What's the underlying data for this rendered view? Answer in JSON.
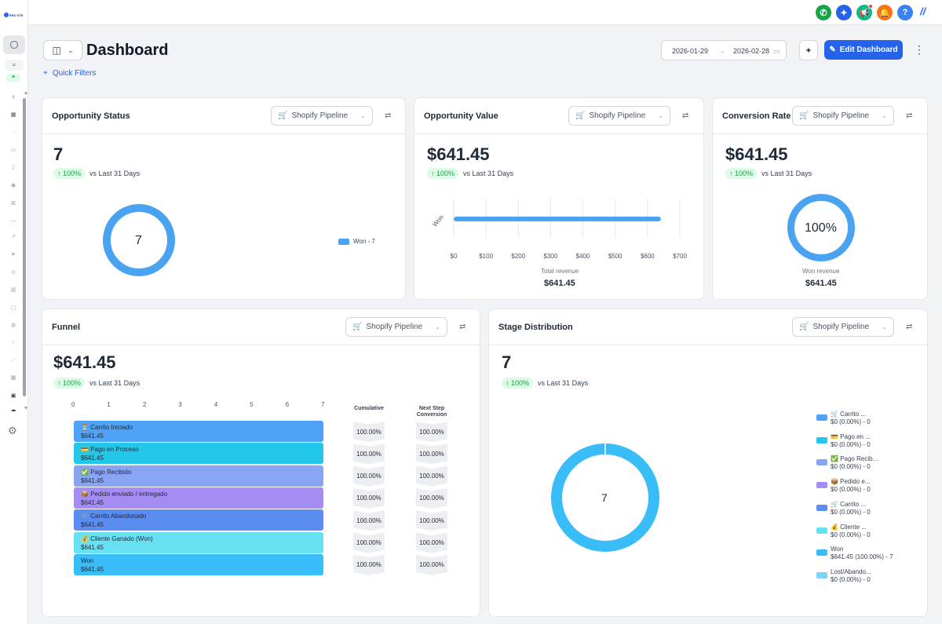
{
  "app": {
    "logo_text": "ERO STE"
  },
  "header": {
    "title": "Dashboard",
    "quick_filters": "Quick Filters",
    "date_start": "2026-01-29",
    "date_end": "2026-02-28",
    "edit_button": "Edit Dashboard"
  },
  "colors": {
    "accent": "#2563eb",
    "donut": "#4aa3f0",
    "trend_bg": "#dcfce7",
    "trend_fg": "#16a34a"
  },
  "pipeline_label": "Shopify Pipeline",
  "trend_pct": "100%",
  "trend_vs": "vs Last 31 Days",
  "cards": {
    "opportunity_status": {
      "title": "Opportunity Status",
      "value": "7",
      "center": "7",
      "legend": "Won - 7"
    },
    "opportunity_value": {
      "title": "Opportunity Value",
      "value": "$641.45",
      "y_label": "Won",
      "x_ticks": [
        "$0",
        "$100",
        "$200",
        "$300",
        "$400",
        "$500",
        "$600",
        "$700"
      ],
      "caption": "Total revenue",
      "caption_value": "$641.45"
    },
    "conversion_rate": {
      "title": "Conversion Rate",
      "value": "$641.45",
      "center": "100%",
      "caption": "Won revenue",
      "caption_value": "$641.45"
    },
    "funnel": {
      "title": "Funnel",
      "value": "$641.45",
      "x_ticks": [
        "0",
        "1",
        "2",
        "3",
        "4",
        "5",
        "6",
        "7"
      ],
      "col_cumulative": "Cumulative",
      "col_next_1": "Next Step",
      "col_next_2": "Conversion",
      "stages": [
        {
          "label": "⏳ Carrito Iniciado",
          "value": "$641.45",
          "cumulative": "100.00%",
          "next": "100.00%",
          "color": "#4ea3f7"
        },
        {
          "label": "💳 Pago en Proceso",
          "value": "$641.45",
          "cumulative": "100.00%",
          "next": "100.00%",
          "color": "#22c7ea"
        },
        {
          "label": "✅ Pago Recibido",
          "value": "$641.45",
          "cumulative": "100.00%",
          "next": "100.00%",
          "color": "#8aa4f4"
        },
        {
          "label": "📦 Pedido enviado / entregado",
          "value": "$641.45",
          "cumulative": "100.00%",
          "next": "100.00%",
          "color": "#a48cf3"
        },
        {
          "label": "🛒 Carrito Abandonado",
          "value": "$641.45",
          "cumulative": "100.00%",
          "next": "100.00%",
          "color": "#5b8cf0"
        },
        {
          "label": "💰 Cliente Ganado (Won)",
          "value": "$641.45",
          "cumulative": "100.00%",
          "next": "100.00%",
          "color": "#67e0f2"
        },
        {
          "label": "Won",
          "value": "$641.45",
          "cumulative": "100.00%",
          "next": "100.00%",
          "color": "#38bdf8"
        }
      ]
    },
    "stage_distribution": {
      "title": "Stage Distribution",
      "value": "7",
      "center": "7",
      "legend": [
        {
          "name": "🛒 Carrito ...",
          "value": "$0 (0.00%) - 0",
          "color": "#4ea3f7"
        },
        {
          "name": "💳 Pago en ...",
          "value": "$0 (0.00%) - 0",
          "color": "#22c7ea"
        },
        {
          "name": "✅ Pago Recib...",
          "value": "$0 (0.00%) - 0",
          "color": "#8aa4f4"
        },
        {
          "name": "📦 Pedido e...",
          "value": "$0 (0.00%) - 0",
          "color": "#a48cf3"
        },
        {
          "name": "🛒 Carrito ...",
          "value": "$0 (0.00%) - 0",
          "color": "#5b8cf0"
        },
        {
          "name": "💰 Cliente ...",
          "value": "$0 (0.00%) - 0",
          "color": "#67e0f2"
        },
        {
          "name": "Won",
          "value": "$641.45 (100.00%) - 7",
          "color": "#38bdf8"
        },
        {
          "name": "Lost/Abando...",
          "value": "$0 (0.00%) - 0",
          "color": "#7dd3fc"
        }
      ]
    }
  },
  "chart_data": [
    {
      "type": "pie",
      "title": "Opportunity Status",
      "categories": [
        "Won"
      ],
      "values": [
        7
      ]
    },
    {
      "type": "bar",
      "title": "Opportunity Value",
      "categories": [
        "Won"
      ],
      "values": [
        641.45
      ],
      "xlabel": "Total revenue",
      "xlim": [
        0,
        700
      ]
    },
    {
      "type": "pie",
      "title": "Conversion Rate",
      "categories": [
        "Won"
      ],
      "values": [
        100
      ]
    },
    {
      "type": "bar",
      "title": "Funnel",
      "categories": [
        "Carrito Iniciado",
        "Pago en Proceso",
        "Pago Recibido",
        "Pedido enviado / entregado",
        "Carrito Abandonado",
        "Cliente Ganado (Won)",
        "Won"
      ],
      "values": [
        7,
        7,
        7,
        7,
        7,
        7,
        7
      ],
      "xlim": [
        0,
        7
      ]
    },
    {
      "type": "pie",
      "title": "Stage Distribution",
      "categories": [
        "Carrito ...",
        "Pago en ...",
        "Pago Recib...",
        "Pedido e...",
        "Carrito ...",
        "Cliente ...",
        "Won",
        "Lost/Abando..."
      ],
      "values": [
        0,
        0,
        0,
        0,
        0,
        0,
        7,
        0
      ]
    }
  ]
}
